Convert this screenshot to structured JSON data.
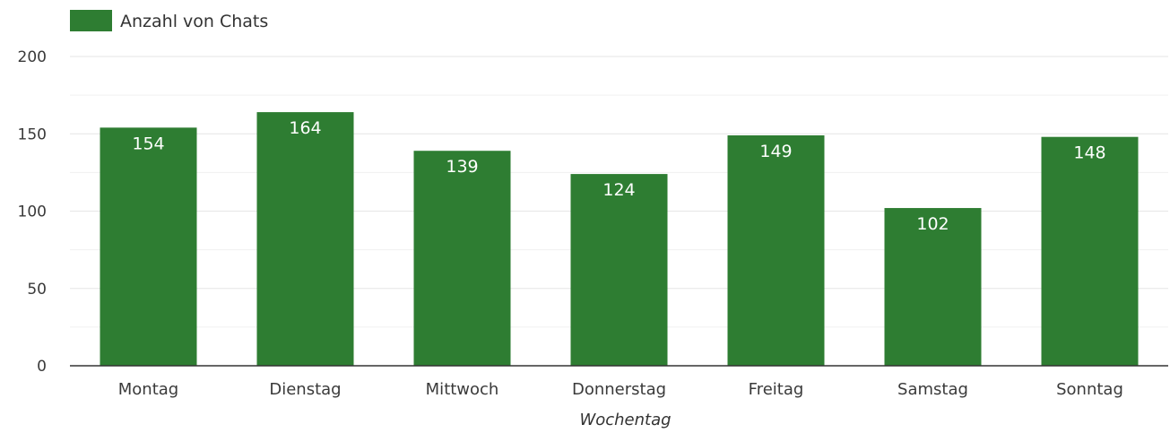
{
  "chart_data": {
    "type": "bar",
    "categories": [
      "Montag",
      "Dienstag",
      "Mittwoch",
      "Donnerstag",
      "Freitag",
      "Samstag",
      "Sonntag"
    ],
    "series": [
      {
        "name": "Anzahl von Chats",
        "values": [
          154,
          164,
          139,
          124,
          149,
          102,
          148
        ]
      }
    ],
    "xlabel": "Wochentag",
    "ylabel": "",
    "ylim": [
      0,
      200
    ],
    "yticks": [
      0,
      50,
      100,
      150,
      200
    ],
    "grid": true,
    "legend_position": "top-left",
    "data_labels": true,
    "colors": {
      "bar": "#2e7d32",
      "grid": "#e6e6e6",
      "axis": "#333333"
    }
  }
}
